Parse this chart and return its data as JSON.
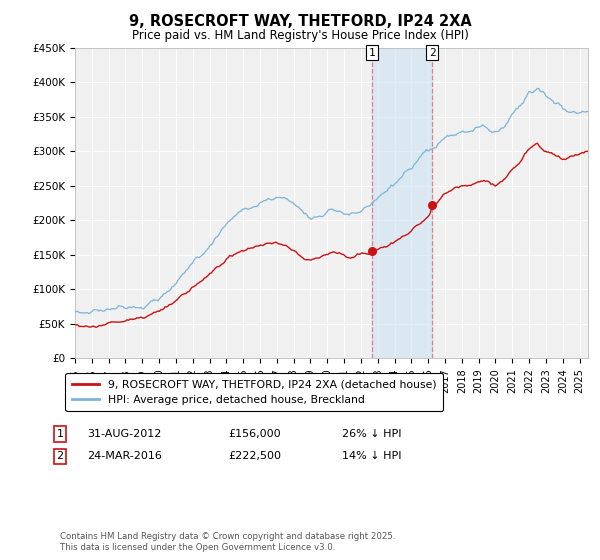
{
  "title": "9, ROSECROFT WAY, THETFORD, IP24 2XA",
  "subtitle": "Price paid vs. HM Land Registry's House Price Index (HPI)",
  "ylim": [
    0,
    450000
  ],
  "xlim_start": 1995.0,
  "xlim_end": 2025.5,
  "hpi_color": "#7ab4d8",
  "price_color": "#cc1111",
  "marker1_date": 2012.67,
  "marker1_price": 156000,
  "marker2_date": 2016.23,
  "marker2_price": 222500,
  "marker1_label": "31-AUG-2012",
  "marker1_value": "£156,000",
  "marker1_pct": "26% ↓ HPI",
  "marker2_label": "24-MAR-2016",
  "marker2_value": "£222,500",
  "marker2_pct": "14% ↓ HPI",
  "legend_line1": "9, ROSECROFT WAY, THETFORD, IP24 2XA (detached house)",
  "legend_line2": "HPI: Average price, detached house, Breckland",
  "footer": "Contains HM Land Registry data © Crown copyright and database right 2025.\nThis data is licensed under the Open Government Licence v3.0.",
  "background_color": "#ffffff"
}
